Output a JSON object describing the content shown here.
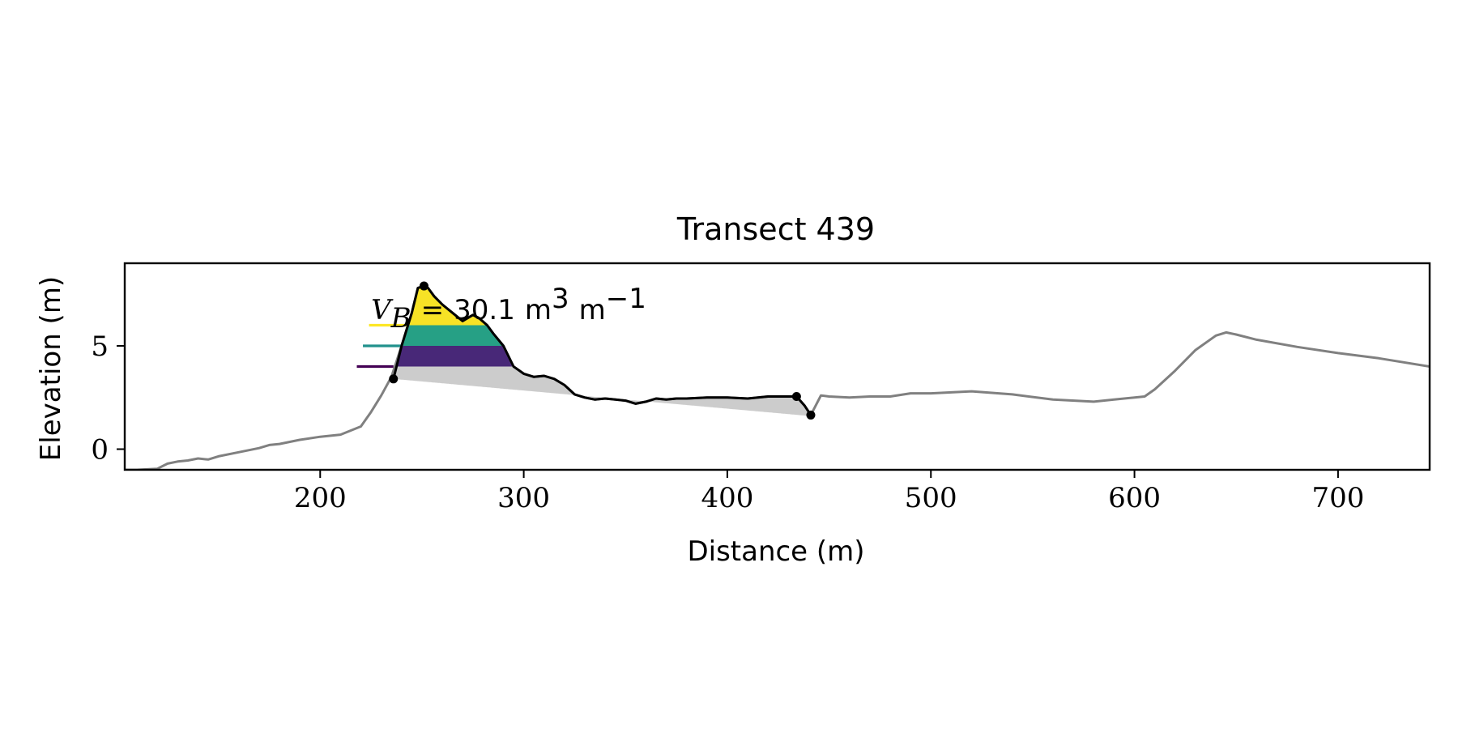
{
  "chart_data": {
    "type": "line",
    "title": "Transect 439",
    "xlabel": "Distance (m)",
    "ylabel": "Elevation (m)",
    "xlim": [
      104,
      745
    ],
    "ylim": [
      -1.0,
      9.0
    ],
    "xticks": [
      200,
      300,
      400,
      500,
      600,
      700
    ],
    "yticks": [
      0,
      5
    ],
    "grid": false,
    "legend": "none",
    "annotation": {
      "symbol": "V",
      "subscript": "B",
      "eq": "=",
      "value": "30.1",
      "unit": "m",
      "unit_exp": "3",
      "per": "m",
      "per_exp": "−1",
      "anchor": [
        225,
        6.3
      ]
    },
    "profile": {
      "color": "#808080",
      "x": [
        104,
        110,
        120,
        125,
        130,
        135,
        140,
        145,
        150,
        160,
        170,
        175,
        180,
        190,
        200,
        210,
        220,
        225,
        230,
        235,
        240,
        245,
        248,
        251,
        253,
        256,
        260,
        265,
        270,
        275,
        278,
        282,
        285,
        290,
        295,
        300,
        305,
        310,
        315,
        320,
        325,
        330,
        335,
        340,
        345,
        350,
        355,
        360,
        365,
        370,
        375,
        380,
        390,
        400,
        410,
        420,
        430,
        434,
        438,
        441,
        446,
        450,
        460,
        470,
        480,
        490,
        500,
        520,
        540,
        560,
        580,
        590,
        605,
        610,
        620,
        630,
        640,
        645,
        650,
        660,
        680,
        700,
        720,
        745
      ],
      "y": [
        -1.0,
        -1.0,
        -0.95,
        -0.7,
        -0.6,
        -0.55,
        -0.45,
        -0.5,
        -0.35,
        -0.15,
        0.05,
        0.2,
        0.25,
        0.45,
        0.6,
        0.7,
        1.1,
        1.8,
        2.6,
        3.5,
        5.0,
        6.6,
        7.8,
        7.9,
        7.8,
        7.4,
        7.0,
        6.6,
        6.2,
        6.5,
        6.35,
        6.0,
        5.6,
        5.0,
        4.0,
        3.65,
        3.5,
        3.55,
        3.4,
        3.1,
        2.65,
        2.5,
        2.4,
        2.45,
        2.4,
        2.35,
        2.2,
        2.3,
        2.45,
        2.4,
        2.45,
        2.45,
        2.5,
        2.5,
        2.45,
        2.55,
        2.55,
        2.55,
        2.1,
        1.65,
        2.6,
        2.55,
        2.5,
        2.55,
        2.55,
        2.7,
        2.7,
        2.8,
        2.65,
        2.4,
        2.3,
        2.4,
        2.55,
        2.9,
        3.8,
        4.8,
        5.5,
        5.65,
        5.55,
        5.3,
        4.95,
        4.65,
        4.4,
        4.0
      ]
    },
    "dune": {
      "color": "#000000",
      "x": [
        236,
        240,
        245,
        248,
        251,
        253,
        256,
        260,
        265,
        270,
        275,
        278,
        282,
        285,
        290,
        295,
        300,
        305,
        310,
        315,
        320,
        325,
        330,
        335,
        340,
        345,
        350,
        355,
        360,
        365,
        370,
        375,
        380,
        390,
        400,
        410,
        420,
        430,
        434,
        438,
        441
      ],
      "y": [
        3.4,
        5.0,
        6.6,
        7.8,
        7.9,
        7.8,
        7.4,
        7.0,
        6.6,
        6.2,
        6.5,
        6.35,
        6.0,
        5.6,
        5.0,
        4.0,
        3.65,
        3.5,
        3.55,
        3.4,
        3.1,
        2.65,
        2.5,
        2.4,
        2.45,
        2.4,
        2.35,
        2.2,
        2.3,
        2.45,
        2.4,
        2.45,
        2.45,
        2.5,
        2.5,
        2.45,
        2.55,
        2.55,
        2.55,
        2.1,
        1.65
      ],
      "points": [
        [
          236,
          3.4
        ],
        [
          251,
          7.9
        ],
        [
          434,
          2.55
        ],
        [
          441,
          1.65
        ]
      ]
    },
    "base_area": {
      "color": "#cccccc",
      "base": [
        [
          236,
          3.4
        ],
        [
          441,
          1.6
        ]
      ]
    },
    "bands": [
      {
        "level": 4.0,
        "upper": 5.0,
        "fill": "#482878",
        "line_x": [
          218,
          236
        ],
        "line_color": "#440154"
      },
      {
        "level": 5.0,
        "upper": 6.0,
        "fill": "#26a085",
        "line_x": [
          221,
          240
        ],
        "line_color": "#21918c"
      },
      {
        "level": 6.0,
        "upper": 8.0,
        "fill": "#f7e226",
        "line_x": [
          224,
          243
        ],
        "line_color": "#fde725"
      }
    ]
  }
}
